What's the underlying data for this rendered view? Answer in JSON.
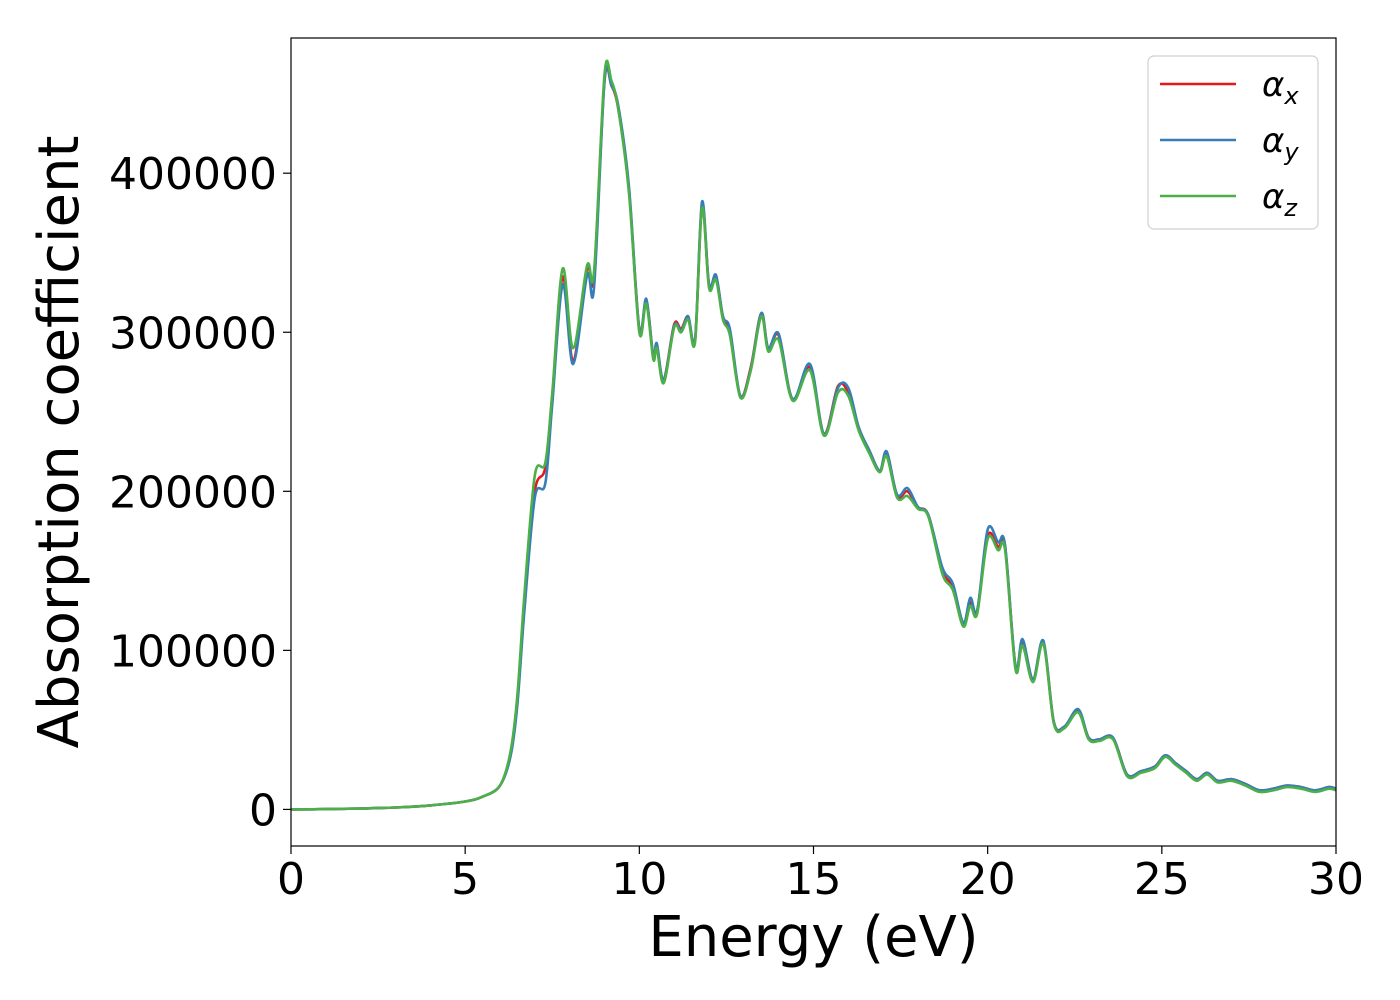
{
  "chart_data": {
    "type": "line",
    "title": "",
    "xlabel": "Energy (eV)",
    "ylabel": "Absorption coefficient",
    "xlim": [
      0,
      30
    ],
    "ylim": [
      -23000,
      485000
    ],
    "xticks": [
      0,
      5,
      10,
      15,
      20,
      25,
      30
    ],
    "xtick_labels": [
      "0",
      "5",
      "10",
      "15",
      "20",
      "25",
      "30"
    ],
    "yticks": [
      0,
      100000,
      200000,
      300000,
      400000
    ],
    "ytick_labels": [
      "0",
      "100000",
      "200000",
      "300000",
      "400000"
    ],
    "grid": false,
    "legend_position": "top-right",
    "colors": {
      "alpha_x": "#e41a1c",
      "alpha_y": "#377eb8",
      "alpha_z": "#4daf4a"
    },
    "x": [
      0,
      1,
      2,
      3,
      4,
      5,
      5.5,
      6,
      6.3,
      6.5,
      6.7,
      7.0,
      7.3,
      7.5,
      7.8,
      8.1,
      8.5,
      8.7,
      9.0,
      9.2,
      9.4,
      9.7,
      10.0,
      10.2,
      10.4,
      10.5,
      10.7,
      11.0,
      11.2,
      11.4,
      11.6,
      11.8,
      12.0,
      12.2,
      12.4,
      12.6,
      12.9,
      13.2,
      13.5,
      13.7,
      14.0,
      14.4,
      14.9,
      15.3,
      15.7,
      16.0,
      16.3,
      16.6,
      16.9,
      17.1,
      17.4,
      17.7,
      18.0,
      18.3,
      18.7,
      19.0,
      19.3,
      19.5,
      19.7,
      20.0,
      20.3,
      20.5,
      20.8,
      21.0,
      21.3,
      21.6,
      21.9,
      22.2,
      22.6,
      22.9,
      23.2,
      23.6,
      24.0,
      24.4,
      24.8,
      25.1,
      25.4,
      25.7,
      26.0,
      26.3,
      26.6,
      27.0,
      27.4,
      27.8,
      28.2,
      28.6,
      29.0,
      29.4,
      29.8,
      30.0
    ],
    "series": [
      {
        "name": "α_x",
        "values": [
          0,
          200,
          600,
          1200,
          2500,
          5000,
          8000,
          15000,
          35000,
          70000,
          130000,
          200000,
          215000,
          260000,
          335000,
          282000,
          340000,
          335000,
          458000,
          455000,
          440000,
          390000,
          302000,
          320000,
          285000,
          292000,
          270000,
          305000,
          302000,
          310000,
          295000,
          380000,
          330000,
          335000,
          310000,
          300000,
          260000,
          278000,
          312000,
          290000,
          298000,
          258000,
          278000,
          236000,
          266000,
          262000,
          240000,
          225000,
          213000,
          224000,
          197000,
          200000,
          190000,
          185000,
          150000,
          140000,
          117000,
          130000,
          125000,
          172000,
          165000,
          165000,
          90000,
          105000,
          82000,
          105000,
          55000,
          52000,
          62000,
          45000,
          44000,
          45000,
          22000,
          24000,
          27000,
          34000,
          29000,
          24000,
          19000,
          23000,
          18000,
          19000,
          16000,
          12000,
          13000,
          15000,
          14000,
          12000,
          14000,
          13000
        ]
      },
      {
        "name": "α_y",
        "values": [
          0,
          200,
          600,
          1200,
          2500,
          5000,
          8000,
          15000,
          33000,
          66000,
          125000,
          196000,
          205000,
          255000,
          330000,
          280000,
          336000,
          328000,
          458000,
          455000,
          442000,
          392000,
          302000,
          321000,
          285000,
          293000,
          270000,
          304000,
          301000,
          310000,
          296000,
          382000,
          330000,
          336000,
          310000,
          302000,
          260000,
          277000,
          312000,
          290000,
          299000,
          258000,
          280000,
          236000,
          265000,
          265000,
          240000,
          226000,
          213000,
          225000,
          198000,
          202000,
          190000,
          185000,
          152000,
          142000,
          117000,
          133000,
          125000,
          176000,
          168000,
          166000,
          90000,
          107000,
          82000,
          106000,
          55000,
          52000,
          63000,
          45000,
          44000,
          45000,
          22000,
          24000,
          27000,
          34000,
          29000,
          24000,
          19000,
          23000,
          18000,
          19000,
          16000,
          12000,
          13000,
          15000,
          14000,
          12000,
          14000,
          13000
        ]
      },
      {
        "name": "α_z",
        "values": [
          0,
          200,
          600,
          1200,
          2500,
          5000,
          8000,
          15000,
          36000,
          72000,
          135000,
          210000,
          218000,
          262000,
          340000,
          290000,
          342000,
          338000,
          462000,
          458000,
          440000,
          388000,
          300000,
          318000,
          283000,
          290000,
          268000,
          303000,
          300000,
          308000,
          294000,
          378000,
          328000,
          333000,
          308000,
          298000,
          259000,
          276000,
          310000,
          288000,
          295000,
          257000,
          276000,
          235000,
          262000,
          260000,
          238000,
          224000,
          212000,
          222000,
          196000,
          197000,
          189000,
          184000,
          148000,
          138000,
          115000,
          128000,
          123000,
          170000,
          163000,
          163000,
          88000,
          103000,
          80000,
          104000,
          54000,
          51000,
          61000,
          44000,
          43000,
          44000,
          21000,
          23000,
          26000,
          33000,
          28000,
          23000,
          18000,
          22000,
          17000,
          18000,
          15000,
          11000,
          12000,
          14000,
          13000,
          11000,
          13000,
          12000
        ]
      }
    ]
  },
  "legend": {
    "entries": [
      {
        "symbol": "α",
        "subscript": "x"
      },
      {
        "symbol": "α",
        "subscript": "y"
      },
      {
        "symbol": "α",
        "subscript": "z"
      }
    ]
  }
}
